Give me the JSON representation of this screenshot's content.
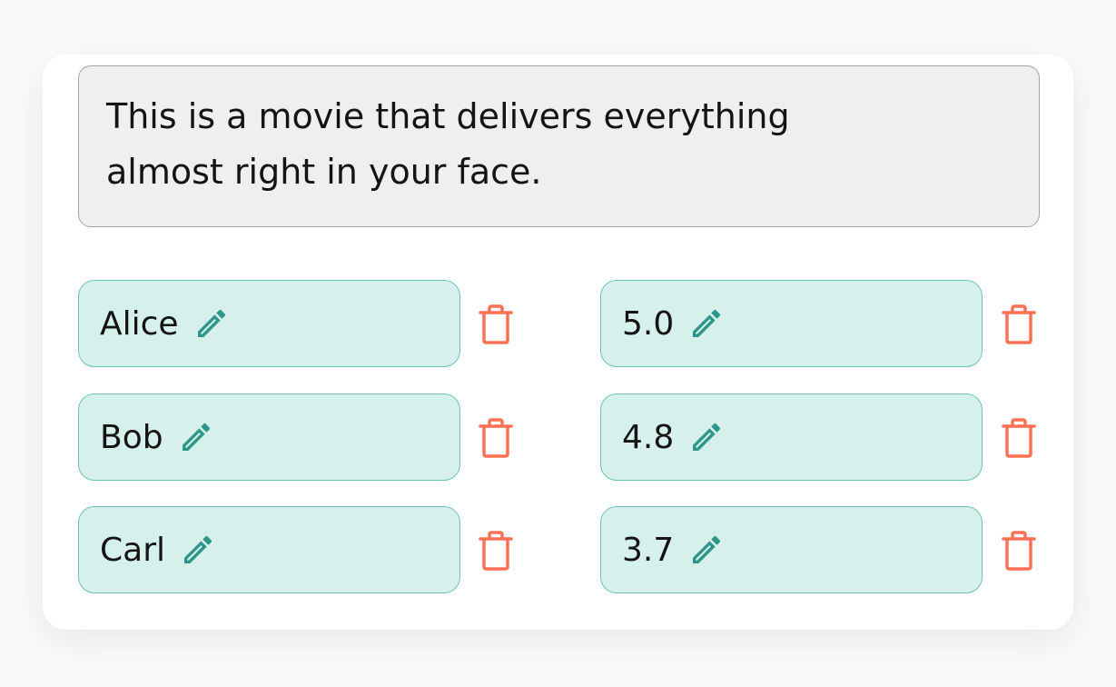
{
  "review": {
    "line1": "This is a movie that delivers everything",
    "line2": "almost right in your face."
  },
  "names": [
    {
      "label": "Alice"
    },
    {
      "label": "Bob"
    },
    {
      "label": "Carl"
    }
  ],
  "scores": [
    {
      "label": "5.0"
    },
    {
      "label": "4.8"
    },
    {
      "label": "3.7"
    }
  ],
  "icons": {
    "edit": "pencil-icon",
    "delete": "trash-icon"
  },
  "colors": {
    "pill_bg": "#d6f1ec",
    "pill_border": "#6dc1b4",
    "edit": "#2e9688",
    "delete": "#ff7155"
  }
}
